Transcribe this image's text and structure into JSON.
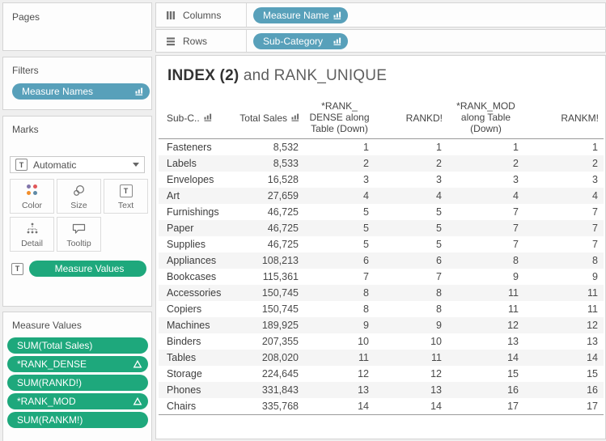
{
  "colors": {
    "blue_pill": "#58a0ba",
    "green_pill": "#1ea87c",
    "banding": "#f5f5f5",
    "color_icon_dots": [
      "#8175aa",
      "#e15759",
      "#f28e2b",
      "#5f8aa6"
    ]
  },
  "sidebar": {
    "pages": {
      "label": "Pages"
    },
    "filters": {
      "label": "Filters",
      "pills": [
        {
          "label": "Measure Names",
          "icon": "sort-icon"
        }
      ]
    },
    "marks": {
      "label": "Marks",
      "mark_type": "Automatic",
      "buttons": [
        {
          "label": "Color"
        },
        {
          "label": "Size"
        },
        {
          "label": "Text"
        },
        {
          "label": "Detail"
        },
        {
          "label": "Tooltip"
        }
      ],
      "pill": "Measure Values"
    },
    "measure_values": {
      "label": "Measure Values",
      "pills": [
        {
          "label": "SUM(Total Sales)",
          "delta": false
        },
        {
          "label": "*RANK_DENSE",
          "delta": true
        },
        {
          "label": "SUM(RANKD!)",
          "delta": false
        },
        {
          "label": "*RANK_MOD",
          "delta": true
        },
        {
          "label": "SUM(RANKM!)",
          "delta": false
        }
      ]
    }
  },
  "shelves": {
    "columns": {
      "label": "Columns",
      "pills": [
        "Measure Names"
      ]
    },
    "rows": {
      "label": "Rows",
      "pills": [
        "Sub-Category"
      ]
    }
  },
  "sheet": {
    "title_bold": "INDEX (2)",
    "title_rest": " and RANK_UNIQUE",
    "table": {
      "headers": [
        {
          "label": "Sub-C..",
          "sort": true,
          "align": "left"
        },
        {
          "label": "Total Sales",
          "sort": true,
          "align": "right"
        },
        {
          "lines": [
            "*RANK_",
            "DENSE along",
            "Table (Down)"
          ],
          "align": "center"
        },
        {
          "label": "RANKD!",
          "align": "right"
        },
        {
          "lines": [
            "*RANK_MOD",
            "along Table",
            "(Down)"
          ],
          "align": "center"
        },
        {
          "label": "RANKM!",
          "align": "right"
        }
      ],
      "rows": [
        [
          "Fasteners",
          "8,532",
          "1",
          "1",
          "1",
          "1"
        ],
        [
          "Labels",
          "8,533",
          "2",
          "2",
          "2",
          "2"
        ],
        [
          "Envelopes",
          "16,528",
          "3",
          "3",
          "3",
          "3"
        ],
        [
          "Art",
          "27,659",
          "4",
          "4",
          "4",
          "4"
        ],
        [
          "Furnishings",
          "46,725",
          "5",
          "5",
          "7",
          "7"
        ],
        [
          "Paper",
          "46,725",
          "5",
          "5",
          "7",
          "7"
        ],
        [
          "Supplies",
          "46,725",
          "5",
          "5",
          "7",
          "7"
        ],
        [
          "Appliances",
          "108,213",
          "6",
          "6",
          "8",
          "8"
        ],
        [
          "Bookcases",
          "115,361",
          "7",
          "7",
          "9",
          "9"
        ],
        [
          "Accessories",
          "150,745",
          "8",
          "8",
          "11",
          "11"
        ],
        [
          "Copiers",
          "150,745",
          "8",
          "8",
          "11",
          "11"
        ],
        [
          "Machines",
          "189,925",
          "9",
          "9",
          "12",
          "12"
        ],
        [
          "Binders",
          "207,355",
          "10",
          "10",
          "13",
          "13"
        ],
        [
          "Tables",
          "208,020",
          "11",
          "11",
          "14",
          "14"
        ],
        [
          "Storage",
          "224,645",
          "12",
          "12",
          "15",
          "15"
        ],
        [
          "Phones",
          "331,843",
          "13",
          "13",
          "16",
          "16"
        ],
        [
          "Chairs",
          "335,768",
          "14",
          "14",
          "17",
          "17"
        ]
      ]
    }
  }
}
